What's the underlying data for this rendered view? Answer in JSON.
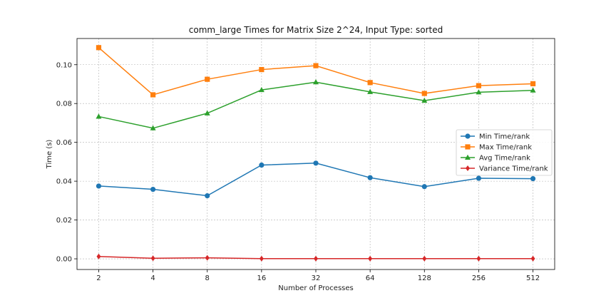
{
  "chart_data": {
    "type": "line",
    "title": "comm_large Times for Matrix Size 2^24, Input Type: sorted",
    "xlabel": "Number of Processes",
    "ylabel": "Time (s)",
    "categories": [
      "2",
      "4",
      "8",
      "16",
      "32",
      "64",
      "128",
      "256",
      "512"
    ],
    "ylim": [
      -0.0055,
      0.1135
    ],
    "yticks": [
      0.0,
      0.02,
      0.04,
      0.06,
      0.08,
      0.1
    ],
    "ytick_labels": [
      "0.00",
      "0.02",
      "0.04",
      "0.06",
      "0.08",
      "0.10"
    ],
    "grid": true,
    "legend_position": "right",
    "series": [
      {
        "name": "Min Time/rank",
        "color": "#1f77b4",
        "marker": "circle",
        "values": [
          0.0375,
          0.0358,
          0.0325,
          0.0483,
          0.0493,
          0.0418,
          0.0372,
          0.0415,
          0.0413
        ]
      },
      {
        "name": "Max Time/rank",
        "color": "#ff7f0e",
        "marker": "square",
        "values": [
          0.1088,
          0.0845,
          0.0925,
          0.0975,
          0.0995,
          0.0908,
          0.0852,
          0.0892,
          0.0902
        ]
      },
      {
        "name": "Avg Time/rank",
        "color": "#2ca02c",
        "marker": "triangle",
        "values": [
          0.0733,
          0.0673,
          0.075,
          0.087,
          0.091,
          0.086,
          0.0815,
          0.0858,
          0.0868
        ]
      },
      {
        "name": "Variance Time/rank",
        "color": "#d62728",
        "marker": "diamond",
        "values": [
          0.0012,
          0.0003,
          0.0005,
          0.0001,
          0.0001,
          0.0001,
          0.0001,
          0.0001,
          0.0001
        ]
      }
    ]
  }
}
